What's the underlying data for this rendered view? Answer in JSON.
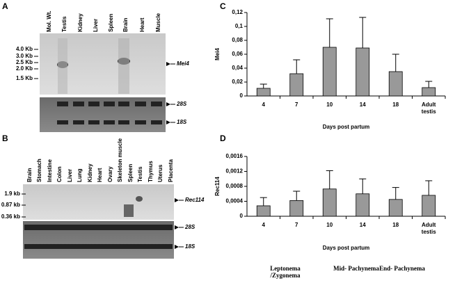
{
  "blots": [
    {
      "label": "A",
      "lanes": [
        "Mol. Wt.",
        "Testis",
        "Kidney",
        "Liver",
        "Spleen",
        "Brain",
        "Heart",
        "Muscle"
      ],
      "markers": [
        "4.0 Kb",
        "3.0 Kb",
        "2.5 Kb",
        "2.0 Kb",
        "1.5 Kb"
      ],
      "gene": "Mei4",
      "rrna": [
        "28S",
        "18S"
      ]
    },
    {
      "label": "B",
      "lanes": [
        "Brain",
        "Stomach",
        "Intestine",
        "Colon",
        "Liver",
        "Lung",
        "Kidney",
        "Heart",
        "Ovary",
        "Skeleton muscle",
        "Spleen",
        "Testis",
        "Thymus",
        "Uterus",
        "Placenta"
      ],
      "markers": [
        "1.9 kb",
        "0.87 kb",
        "0.36 kb"
      ],
      "gene": "Rec114",
      "rrna": [
        "28S",
        "18S"
      ]
    }
  ],
  "chart_data": [
    {
      "type": "bar",
      "label": "C",
      "y_label": "Mei4",
      "x_label": "Days post partum",
      "categories": [
        "4",
        "7",
        "10",
        "14",
        "18",
        "Adult testis"
      ],
      "values": [
        0.011,
        0.032,
        0.07,
        0.069,
        0.035,
        0.012
      ],
      "errors": [
        0.006,
        0.02,
        0.041,
        0.044,
        0.025,
        0.009
      ],
      "color": "#999999",
      "ylim": [
        0,
        0.12
      ],
      "yticks": [
        0,
        {
          "value": 0.02,
          "label": "0,02"
        },
        {
          "value": 0.04,
          "label": "0,04"
        },
        {
          "value": 0.06,
          "label": "0,06"
        },
        {
          "value": 0.08,
          "label": "0,08"
        },
        {
          "value": 0.1,
          "label": "0,1"
        },
        {
          "value": 0.12,
          "label": "0,12"
        }
      ]
    },
    {
      "type": "bar",
      "label": "D",
      "y_label": "Rec114",
      "x_label": "Days post partum",
      "categories": [
        "4",
        "7",
        "10",
        "14",
        "18",
        "Adult testis"
      ],
      "values": [
        0.00028,
        0.00042,
        0.00073,
        0.0006,
        0.00045,
        0.00056
      ],
      "errors": [
        0.00022,
        0.00025,
        0.00049,
        0.0004,
        0.00032,
        0.00039
      ],
      "color": "#999999",
      "ylim": [
        0,
        0.0016
      ],
      "yticks": [
        0,
        {
          "value": 0.0004,
          "label": "0,0004"
        },
        {
          "value": 0.0008,
          "label": "0,0008"
        },
        {
          "value": 0.0012,
          "label": "0,0012"
        },
        {
          "value": 0.0016,
          "label": "0,0016"
        }
      ],
      "stages": [
        "Leptonema /Zygonema",
        "Mid- Pachynema",
        "End- Pachynema"
      ]
    }
  ]
}
